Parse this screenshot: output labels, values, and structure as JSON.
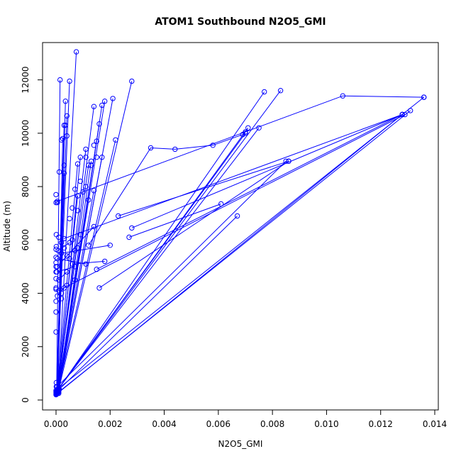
{
  "chart_data": {
    "type": "line",
    "title": "ATOM1 Southbound N2O5_GMI",
    "xlabel": "N2O5_GMI",
    "ylabel": "Altitude (m)",
    "xlim": [
      0,
      0.014
    ],
    "ylim": [
      0,
      13000
    ],
    "x_ticks": [
      "0.000",
      "0.002",
      "0.004",
      "0.006",
      "0.008",
      "0.010",
      "0.012",
      "0.014"
    ],
    "y_ticks": [
      "0",
      "2000",
      "4000",
      "6000",
      "8000",
      "10000",
      "12000"
    ],
    "grid": false,
    "legend": "none",
    "line_color": "#0000ff",
    "markers": "open-circle",
    "series": [
      {
        "points": [
          [
            7e-05,
            300
          ],
          [
            0.00075,
            13050
          ]
        ]
      },
      {
        "points": [
          [
            2e-05,
            220
          ],
          [
            0.00015,
            12000
          ]
        ]
      },
      {
        "points": [
          [
            3e-05,
            250
          ],
          [
            0.0005,
            11950
          ]
        ]
      },
      {
        "points": [
          [
            4e-05,
            260
          ],
          [
            0.00035,
            11200
          ]
        ]
      },
      {
        "points": [
          [
            5e-05,
            280
          ],
          [
            0.0014,
            11000
          ]
        ]
      },
      {
        "points": [
          [
            6e-05,
            300
          ],
          [
            0.0018,
            11200
          ]
        ]
      },
      {
        "points": [
          [
            8e-05,
            320
          ],
          [
            0.0028,
            11950
          ]
        ]
      },
      {
        "points": [
          [
            9e-05,
            350
          ],
          [
            0.0021,
            11300
          ]
        ]
      },
      {
        "points": [
          [
            0.0001,
            380
          ],
          [
            0.0017,
            11050
          ]
        ]
      },
      {
        "points": [
          [
            0.00012,
            400
          ],
          [
            0.0016,
            10350
          ]
        ]
      },
      {
        "points": [
          [
            2e-05,
            230
          ],
          [
            0.0004,
            10650
          ]
        ]
      },
      {
        "points": [
          [
            3e-05,
            240
          ],
          [
            0.0003,
            10300
          ]
        ]
      },
      {
        "points": [
          [
            4e-05,
            260
          ],
          [
            0.00025,
            9800
          ]
        ]
      },
      {
        "points": [
          [
            5e-05,
            300
          ],
          [
            0.0022,
            9750
          ]
        ]
      },
      {
        "points": [
          [
            6e-05,
            320
          ],
          [
            0.0015,
            9700
          ]
        ]
      },
      {
        "points": [
          [
            7e-05,
            340
          ],
          [
            0.0017,
            9100
          ]
        ]
      },
      {
        "points": [
          [
            8e-05,
            360
          ],
          [
            0.0011,
            9400
          ]
        ]
      },
      {
        "points": [
          [
            9e-05,
            380
          ],
          [
            0.0009,
            9100
          ]
        ]
      },
      {
        "points": [
          [
            0.0001,
            400
          ],
          [
            0.0013,
            8950
          ]
        ]
      },
      {
        "points": [
          [
            2e-05,
            230
          ],
          [
            0.0012,
            8800
          ]
        ]
      },
      {
        "points": [
          [
            3e-05,
            250
          ],
          [
            0.0008,
            8850
          ]
        ]
      },
      {
        "points": [
          [
            4e-05,
            270
          ],
          [
            0.0014,
            7850
          ]
        ]
      },
      {
        "points": [
          [
            5e-05,
            300
          ],
          [
            0.0008,
            7650
          ]
        ]
      },
      {
        "points": [
          [
            6e-05,
            250
          ],
          [
            0.0003,
            8500
          ]
        ]
      },
      {
        "points": [
          [
            2e-05,
            220
          ],
          [
            0.0128,
            10700
          ]
        ]
      },
      {
        "points": [
          [
            0.0001,
            300
          ],
          [
            0.0131,
            10850
          ]
        ]
      },
      {
        "points": [
          [
            5e-05,
            400
          ],
          [
            0.0136,
            11350
          ]
        ]
      },
      {
        "points": [
          [
            4e-05,
            350
          ],
          [
            0.0083,
            11600
          ]
        ]
      },
      {
        "points": [
          [
            3e-05,
            320
          ],
          [
            0.0077,
            11550
          ]
        ]
      },
      {
        "points": [
          [
            6e-05,
            380
          ],
          [
            0.0071,
            10200
          ]
        ]
      },
      {
        "points": [
          [
            7e-05,
            400
          ],
          [
            0.0075,
            10200
          ]
        ]
      },
      {
        "points": [
          [
            8e-05,
            420
          ],
          [
            0.007,
            10000
          ]
        ]
      },
      {
        "points": [
          [
            0.0,
            7400
          ],
          [
            5e-05,
            7450
          ],
          [
            0.0106,
            11400
          ],
          [
            0.0136,
            11350
          ]
        ]
      },
      {
        "points": [
          [
            0.0012,
            5800
          ],
          [
            0.0035,
            9450
          ],
          [
            0.0044,
            9400
          ],
          [
            0.0058,
            9550
          ],
          [
            0.0069,
            9950
          ],
          [
            0.007,
            10050
          ]
        ]
      },
      {
        "points": [
          [
            0.0001,
            4100
          ],
          [
            0.0129,
            10700
          ]
        ]
      },
      {
        "points": [
          [
            0.0015,
            4900
          ],
          [
            0.0128,
            10700
          ]
        ]
      },
      {
        "points": [
          [
            0.0028,
            6450
          ],
          [
            0.0128,
            10700
          ]
        ]
      },
      {
        "points": [
          [
            0.0023,
            6900
          ],
          [
            0.0086,
            8950
          ]
        ]
      },
      {
        "points": [
          [
            0.0016,
            4200
          ],
          [
            0.0086,
            8950
          ]
        ]
      },
      {
        "points": [
          [
            0.0027,
            6100
          ],
          [
            0.0061,
            7350
          ]
        ]
      },
      {
        "points": [
          [
            0.0003,
            6050
          ],
          [
            0.0128,
            10700
          ]
        ]
      },
      {
        "points": [
          [
            2e-05,
            300
          ],
          [
            0.0067,
            6900
          ]
        ]
      },
      {
        "points": [
          [
            4e-05,
            500
          ],
          [
            0.0085,
            8950
          ]
        ]
      },
      {
        "points": [
          [
            4e-05,
            5000
          ],
          [
            0.0014,
            6500
          ]
        ]
      },
      {
        "points": [
          [
            0.0002,
            5500
          ],
          [
            0.002,
            5800
          ]
        ]
      },
      {
        "points": [
          [
            0.0006,
            5100
          ],
          [
            0.0018,
            5200
          ]
        ]
      },
      {
        "points": [
          [
            5e-05,
            5300
          ],
          [
            0.0011,
            5100
          ]
        ]
      },
      {
        "points": [
          [
            0.0001,
            4500
          ],
          [
            0.0004,
            4800
          ]
        ]
      },
      {
        "points": [
          [
            5e-05,
            3900
          ],
          [
            0.0003,
            4200
          ]
        ]
      },
      {
        "points": [
          [
            3e-05,
            4800
          ],
          [
            0.0007,
            5000
          ]
        ]
      },
      {
        "points": [
          [
            8e-05,
            5600
          ],
          [
            0.0005,
            5900
          ]
        ]
      }
    ],
    "extra_points": [
      [
        0.0,
        200
      ],
      [
        0.0,
        250
      ],
      [
        0.0,
        300
      ],
      [
        0.0,
        350
      ],
      [
        1e-05,
        500
      ],
      [
        1e-05,
        650
      ],
      [
        0.0001,
        250
      ],
      [
        0.0,
        2550
      ],
      [
        0.0,
        3300
      ],
      [
        0.0,
        3700
      ],
      [
        0.0,
        4150
      ],
      [
        0.0,
        4200
      ],
      [
        0.0,
        4550
      ],
      [
        0.0,
        4800
      ],
      [
        0.0,
        5000
      ],
      [
        0.0,
        5150
      ],
      [
        0.0,
        5350
      ],
      [
        0.0,
        5650
      ],
      [
        1e-05,
        5750
      ],
      [
        1e-05,
        6200
      ],
      [
        0.0,
        7700
      ],
      [
        5e-05,
        7400
      ],
      [
        0.00012,
        8550
      ],
      [
        0.0002,
        9750
      ],
      [
        0.0001,
        6100
      ],
      [
        0.0002,
        5900
      ],
      [
        0.0003,
        5700
      ],
      [
        0.0004,
        5400
      ],
      [
        0.0005,
        5300
      ],
      [
        0.0006,
        6000
      ],
      [
        0.0007,
        5600
      ],
      [
        0.0008,
        5700
      ],
      [
        0.0004,
        4300
      ],
      [
        0.0002,
        4000
      ],
      [
        0.0002,
        3800
      ],
      [
        0.0007,
        4500
      ],
      [
        0.0009,
        6200
      ],
      [
        0.0005,
        6800
      ],
      [
        0.0006,
        7200
      ],
      [
        0.0008,
        7100
      ],
      [
        0.0011,
        8000
      ],
      [
        0.0014,
        9550
      ],
      [
        0.0013,
        8800
      ],
      [
        0.0012,
        7500
      ],
      [
        0.0015,
        9100
      ],
      [
        0.0011,
        9100
      ],
      [
        0.001,
        7800
      ],
      [
        0.0009,
        8200
      ],
      [
        0.0007,
        7900
      ],
      [
        0.00035,
        10300
      ],
      [
        0.0004,
        9900
      ],
      [
        0.0003,
        8800
      ]
    ]
  }
}
